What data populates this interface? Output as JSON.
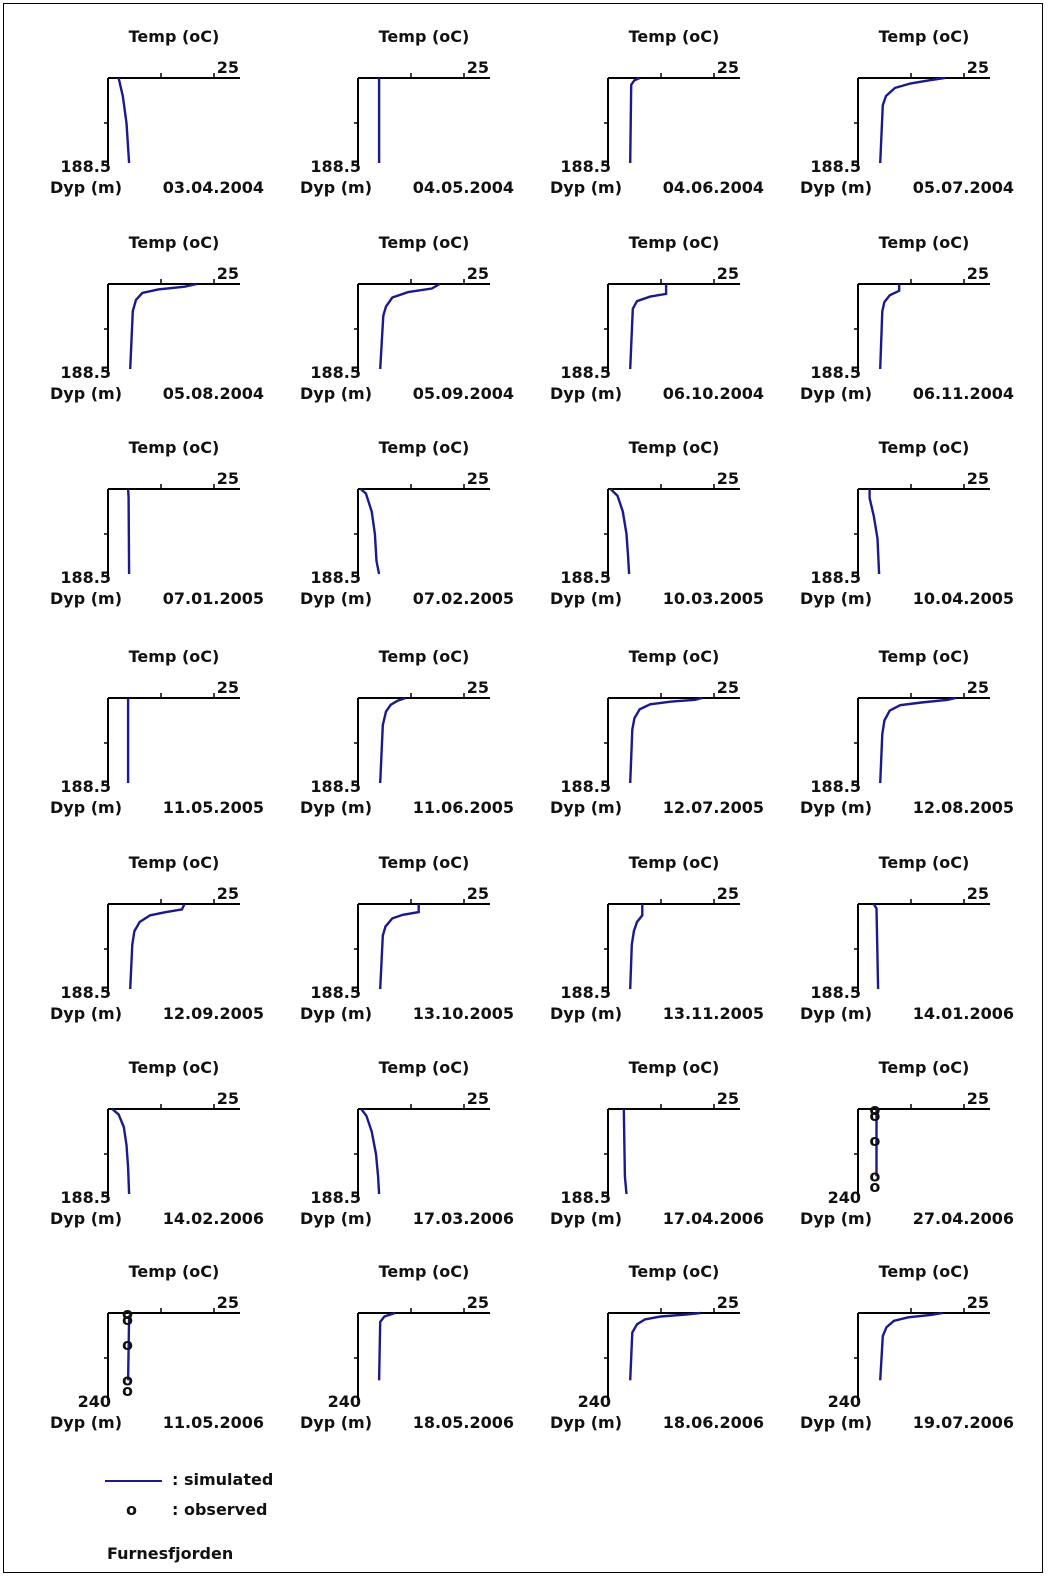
{
  "legend": {
    "simulated_marker": "—",
    "simulated_label": ": simulated",
    "observed_marker": "o",
    "observed_label": ": observed"
  },
  "lake_name": "Furnesfjorden",
  "chart_data": [
    {
      "type": "line",
      "date": "03.04.2004",
      "xlabel": "Temp (oC)",
      "ylabel": "Dyp (m)",
      "x_tick_label": "25",
      "xlim": [
        0,
        25
      ],
      "y_tick_label": "188.5",
      "ylim": [
        188.5,
        0
      ],
      "series": [
        {
          "name": "simulated",
          "depth": [
            0,
            40,
            100,
            188.5
          ],
          "temp": [
            2.0,
            2.8,
            3.5,
            4.0
          ]
        }
      ]
    },
    {
      "type": "line",
      "date": "04.05.2004",
      "xlabel": "Temp (oC)",
      "ylabel": "Dyp (m)",
      "x_tick_label": "25",
      "xlim": [
        0,
        25
      ],
      "y_tick_label": "188.5",
      "ylim": [
        188.5,
        0
      ],
      "series": [
        {
          "name": "simulated",
          "depth": [
            0,
            188.5
          ],
          "temp": [
            4.0,
            4.0
          ]
        }
      ]
    },
    {
      "type": "line",
      "date": "04.06.2004",
      "xlabel": "Temp (oC)",
      "ylabel": "Dyp (m)",
      "x_tick_label": "25",
      "xlim": [
        0,
        25
      ],
      "y_tick_label": "188.5",
      "ylim": [
        188.5,
        0
      ],
      "series": [
        {
          "name": "simulated",
          "depth": [
            0,
            5,
            15,
            188.5
          ],
          "temp": [
            6.0,
            5.0,
            4.4,
            4.2
          ]
        }
      ]
    },
    {
      "type": "line",
      "date": "05.07.2004",
      "xlabel": "Temp (oC)",
      "ylabel": "Dyp (m)",
      "x_tick_label": "25",
      "xlim": [
        0,
        25
      ],
      "y_tick_label": "188.5",
      "ylim": [
        188.5,
        0
      ],
      "series": [
        {
          "name": "simulated",
          "depth": [
            0,
            5,
            12,
            22,
            40,
            60,
            188.5
          ],
          "temp": [
            16.5,
            13.5,
            10.0,
            7.0,
            5.3,
            4.7,
            4.2
          ]
        }
      ]
    },
    {
      "type": "line",
      "date": "05.08.2004",
      "xlabel": "Temp (oC)",
      "ylabel": "Dyp (m)",
      "x_tick_label": "25",
      "xlim": [
        0,
        25
      ],
      "y_tick_label": "188.5",
      "ylim": [
        188.5,
        0
      ],
      "series": [
        {
          "name": "simulated",
          "depth": [
            0,
            6,
            12,
            20,
            35,
            60,
            188.5
          ],
          "temp": [
            16.8,
            14.5,
            9.5,
            6.5,
            5.3,
            4.7,
            4.2
          ]
        }
      ]
    },
    {
      "type": "line",
      "date": "05.09.2004",
      "xlabel": "Temp (oC)",
      "ylabel": "Dyp (m)",
      "x_tick_label": "25",
      "xlim": [
        0,
        25
      ],
      "y_tick_label": "188.5",
      "ylim": [
        188.5,
        0
      ],
      "series": [
        {
          "name": "simulated",
          "depth": [
            0,
            10,
            18,
            30,
            50,
            70,
            188.5
          ],
          "temp": [
            15.5,
            14.0,
            9.5,
            6.5,
            5.3,
            4.8,
            4.2
          ]
        }
      ]
    },
    {
      "type": "line",
      "date": "06.10.2004",
      "xlabel": "Temp (oC)",
      "ylabel": "Dyp (m)",
      "x_tick_label": "25",
      "xlim": [
        0,
        25
      ],
      "y_tick_label": "188.5",
      "ylim": [
        188.5,
        0
      ],
      "series": [
        {
          "name": "simulated",
          "depth": [
            0,
            22,
            28,
            38,
            55,
            188.5
          ],
          "temp": [
            11.0,
            11.0,
            8.0,
            5.5,
            4.7,
            4.2
          ]
        }
      ]
    },
    {
      "type": "line",
      "date": "06.11.2004",
      "xlabel": "Temp (oC)",
      "ylabel": "Dyp (m)",
      "x_tick_label": "25",
      "xlim": [
        0,
        25
      ],
      "y_tick_label": "188.5",
      "ylim": [
        188.5,
        0
      ],
      "series": [
        {
          "name": "simulated",
          "depth": [
            0,
            15,
            25,
            40,
            60,
            188.5
          ],
          "temp": [
            7.8,
            7.8,
            6.0,
            5.0,
            4.6,
            4.2
          ]
        }
      ]
    },
    {
      "type": "line",
      "date": "07.01.2005",
      "xlabel": "Temp (oC)",
      "ylabel": "Dyp (m)",
      "x_tick_label": "25",
      "xlim": [
        0,
        25
      ],
      "y_tick_label": "188.5",
      "ylim": [
        188.5,
        0
      ],
      "series": [
        {
          "name": "simulated",
          "depth": [
            0,
            20,
            188.5
          ],
          "temp": [
            3.8,
            3.9,
            4.0
          ]
        }
      ]
    },
    {
      "type": "line",
      "date": "07.02.2005",
      "xlabel": "Temp (oC)",
      "ylabel": "Dyp (m)",
      "x_tick_label": "25",
      "xlim": [
        0,
        25
      ],
      "y_tick_label": "188.5",
      "ylim": [
        188.5,
        0
      ],
      "series": [
        {
          "name": "simulated",
          "depth": [
            0,
            10,
            50,
            100,
            160,
            188.5
          ],
          "temp": [
            0.5,
            1.5,
            2.6,
            3.2,
            3.5,
            4.0
          ]
        }
      ]
    },
    {
      "type": "line",
      "date": "10.03.2005",
      "xlabel": "Temp (oC)",
      "ylabel": "Dyp (m)",
      "x_tick_label": "25",
      "xlim": [
        0,
        25
      ],
      "y_tick_label": "188.5",
      "ylim": [
        188.5,
        0
      ],
      "series": [
        {
          "name": "simulated",
          "depth": [
            0,
            15,
            50,
            100,
            150,
            188.5
          ],
          "temp": [
            0.5,
            1.8,
            2.8,
            3.5,
            3.8,
            4.0
          ]
        }
      ]
    },
    {
      "type": "line",
      "date": "10.04.2005",
      "xlabel": "Temp (oC)",
      "ylabel": "Dyp (m)",
      "x_tick_label": "25",
      "xlim": [
        0,
        25
      ],
      "y_tick_label": "188.5",
      "ylim": [
        188.5,
        0
      ],
      "series": [
        {
          "name": "simulated",
          "depth": [
            0,
            20,
            60,
            110,
            188.5
          ],
          "temp": [
            2.2,
            2.2,
            3.0,
            3.7,
            4.0
          ]
        }
      ]
    },
    {
      "type": "line",
      "date": "11.05.2005",
      "xlabel": "Temp (oC)",
      "ylabel": "Dyp (m)",
      "x_tick_label": "25",
      "xlim": [
        0,
        25
      ],
      "y_tick_label": "188.5",
      "ylim": [
        188.5,
        0
      ],
      "series": [
        {
          "name": "simulated",
          "depth": [
            0,
            188.5
          ],
          "temp": [
            3.8,
            3.8
          ]
        }
      ]
    },
    {
      "type": "line",
      "date": "11.06.2005",
      "xlabel": "Temp (oC)",
      "ylabel": "Dyp (m)",
      "x_tick_label": "25",
      "xlim": [
        0,
        25
      ],
      "y_tick_label": "188.5",
      "ylim": [
        188.5,
        0
      ],
      "series": [
        {
          "name": "simulated",
          "depth": [
            0,
            6,
            15,
            30,
            60,
            188.5
          ],
          "temp": [
            9.0,
            7.5,
            6.2,
            5.3,
            4.7,
            4.2
          ]
        }
      ]
    },
    {
      "type": "line",
      "date": "12.07.2005",
      "xlabel": "Temp (oC)",
      "ylabel": "Dyp (m)",
      "x_tick_label": "25",
      "xlim": [
        0,
        25
      ],
      "y_tick_label": "188.5",
      "ylim": [
        188.5,
        0
      ],
      "series": [
        {
          "name": "simulated",
          "depth": [
            0,
            4,
            8,
            14,
            25,
            45,
            70,
            188.5
          ],
          "temp": [
            17.8,
            16.5,
            12.0,
            8.0,
            6.0,
            5.0,
            4.6,
            4.2
          ]
        }
      ]
    },
    {
      "type": "line",
      "date": "12.08.2005",
      "xlabel": "Temp (oC)",
      "ylabel": "Dyp (m)",
      "x_tick_label": "25",
      "xlim": [
        0,
        25
      ],
      "y_tick_label": "188.5",
      "ylim": [
        188.5,
        0
      ],
      "series": [
        {
          "name": "simulated",
          "depth": [
            0,
            4,
            10,
            16,
            28,
            50,
            80,
            188.5
          ],
          "temp": [
            18.5,
            17.0,
            12.0,
            8.0,
            6.0,
            5.0,
            4.6,
            4.2
          ]
        }
      ]
    },
    {
      "type": "line",
      "date": "12.09.2005",
      "xlabel": "Temp (oC)",
      "ylabel": "Dyp (m)",
      "x_tick_label": "25",
      "xlim": [
        0,
        25
      ],
      "y_tick_label": "188.5",
      "ylim": [
        188.5,
        0
      ],
      "series": [
        {
          "name": "simulated",
          "depth": [
            0,
            12,
            18,
            25,
            40,
            60,
            90,
            188.5
          ],
          "temp": [
            14.5,
            14.0,
            11.0,
            8.0,
            6.0,
            5.0,
            4.6,
            4.2
          ]
        }
      ]
    },
    {
      "type": "line",
      "date": "13.10.2005",
      "xlabel": "Temp (oC)",
      "ylabel": "Dyp (m)",
      "x_tick_label": "25",
      "xlim": [
        0,
        25
      ],
      "y_tick_label": "188.5",
      "ylim": [
        188.5,
        0
      ],
      "series": [
        {
          "name": "simulated",
          "depth": [
            0,
            18,
            24,
            32,
            50,
            70,
            188.5
          ],
          "temp": [
            11.5,
            11.5,
            8.5,
            6.5,
            5.2,
            4.7,
            4.2
          ]
        }
      ]
    },
    {
      "type": "line",
      "date": "13.11.2005",
      "xlabel": "Temp (oC)",
      "ylabel": "Dyp (m)",
      "x_tick_label": "25",
      "xlim": [
        0,
        25
      ],
      "y_tick_label": "188.5",
      "ylim": [
        188.5,
        0
      ],
      "series": [
        {
          "name": "simulated",
          "depth": [
            0,
            25,
            40,
            60,
            90,
            188.5
          ],
          "temp": [
            6.5,
            6.5,
            5.5,
            4.9,
            4.5,
            4.2
          ]
        }
      ]
    },
    {
      "type": "line",
      "date": "14.01.2006",
      "xlabel": "Temp (oC)",
      "ylabel": "Dyp (m)",
      "x_tick_label": "25",
      "xlim": [
        0,
        25
      ],
      "y_tick_label": "188.5",
      "ylim": [
        188.5,
        0
      ],
      "series": [
        {
          "name": "simulated",
          "depth": [
            0,
            10,
            188.5
          ],
          "temp": [
            3.0,
            3.5,
            3.8
          ]
        }
      ]
    },
    {
      "type": "line",
      "date": "14.02.2006",
      "xlabel": "Temp (oC)",
      "ylabel": "Dyp (m)",
      "x_tick_label": "25",
      "xlim": [
        0,
        25
      ],
      "y_tick_label": "188.5",
      "ylim": [
        188.5,
        0
      ],
      "series": [
        {
          "name": "simulated",
          "depth": [
            0,
            12,
            40,
            80,
            130,
            188.5
          ],
          "temp": [
            0.8,
            2.0,
            3.0,
            3.5,
            3.8,
            4.0
          ]
        }
      ]
    },
    {
      "type": "line",
      "date": "17.03.2006",
      "xlabel": "Temp (oC)",
      "ylabel": "Dyp (m)",
      "x_tick_label": "25",
      "xlim": [
        0,
        25
      ],
      "y_tick_label": "188.5",
      "ylim": [
        188.5,
        0
      ],
      "series": [
        {
          "name": "simulated",
          "depth": [
            0,
            15,
            50,
            100,
            150,
            188.5
          ],
          "temp": [
            0.6,
            1.6,
            2.6,
            3.4,
            3.8,
            4.0
          ]
        }
      ]
    },
    {
      "type": "line",
      "date": "17.04.2006",
      "xlabel": "Temp (oC)",
      "ylabel": "Dyp (m)",
      "x_tick_label": "25",
      "xlim": [
        0,
        25
      ],
      "y_tick_label": "188.5",
      "ylim": [
        188.5,
        0
      ],
      "series": [
        {
          "name": "simulated",
          "depth": [
            0,
            150,
            188.5
          ],
          "temp": [
            3.0,
            3.2,
            3.5
          ]
        }
      ]
    },
    {
      "type": "line",
      "date": "27.04.2006",
      "xlabel": "Temp (oC)",
      "ylabel": "Dyp (m)",
      "x_tick_label": "25",
      "xlim": [
        0,
        25
      ],
      "y_tick_label": "240",
      "ylim": [
        240,
        0
      ],
      "series": [
        {
          "name": "simulated",
          "depth": [
            0,
            190
          ],
          "temp": [
            3.5,
            3.5
          ]
        },
        {
          "name": "observed",
          "depth": [
            3,
            20,
            90,
            190,
            220
          ],
          "temp": [
            3.2,
            3.2,
            3.2,
            3.2,
            3.2
          ]
        }
      ]
    },
    {
      "type": "line",
      "date": "11.05.2006",
      "xlabel": "Temp (oC)",
      "ylabel": "Dyp (m)",
      "x_tick_label": "25",
      "xlim": [
        0,
        25
      ],
      "y_tick_label": "240",
      "ylim": [
        240,
        0
      ],
      "series": [
        {
          "name": "simulated",
          "depth": [
            0,
            10,
            190
          ],
          "temp": [
            4.5,
            4.0,
            3.8
          ]
        },
        {
          "name": "observed",
          "depth": [
            3,
            20,
            90,
            190,
            220
          ],
          "temp": [
            3.7,
            3.7,
            3.7,
            3.7,
            3.7
          ]
        }
      ]
    },
    {
      "type": "line",
      "date": "18.05.2006",
      "xlabel": "Temp (oC)",
      "ylabel": "Dyp (m)",
      "x_tick_label": "25",
      "xlim": [
        0,
        25
      ],
      "y_tick_label": "240",
      "ylim": [
        240,
        0
      ],
      "series": [
        {
          "name": "simulated",
          "depth": [
            0,
            10,
            25,
            190
          ],
          "temp": [
            7.0,
            5.0,
            4.2,
            4.0
          ]
        }
      ]
    },
    {
      "type": "line",
      "date": "18.06.2006",
      "xlabel": "Temp (oC)",
      "ylabel": "Dyp (m)",
      "x_tick_label": "25",
      "xlim": [
        0,
        25
      ],
      "y_tick_label": "240",
      "ylim": [
        240,
        0
      ],
      "series": [
        {
          "name": "simulated",
          "depth": [
            0,
            4,
            10,
            18,
            32,
            55,
            190
          ],
          "temp": [
            17.5,
            15.0,
            10.0,
            7.0,
            5.5,
            4.6,
            4.2
          ]
        }
      ]
    },
    {
      "type": "line",
      "date": "19.07.2006",
      "xlabel": "Temp (oC)",
      "ylabel": "Dyp (m)",
      "x_tick_label": "25",
      "xlim": [
        0,
        25
      ],
      "y_tick_label": "240",
      "ylim": [
        240,
        0
      ],
      "series": [
        {
          "name": "simulated",
          "depth": [
            0,
            5,
            12,
            22,
            40,
            65,
            190
          ],
          "temp": [
            16.0,
            14.0,
            9.5,
            6.8,
            5.4,
            4.7,
            4.2
          ]
        }
      ]
    }
  ]
}
